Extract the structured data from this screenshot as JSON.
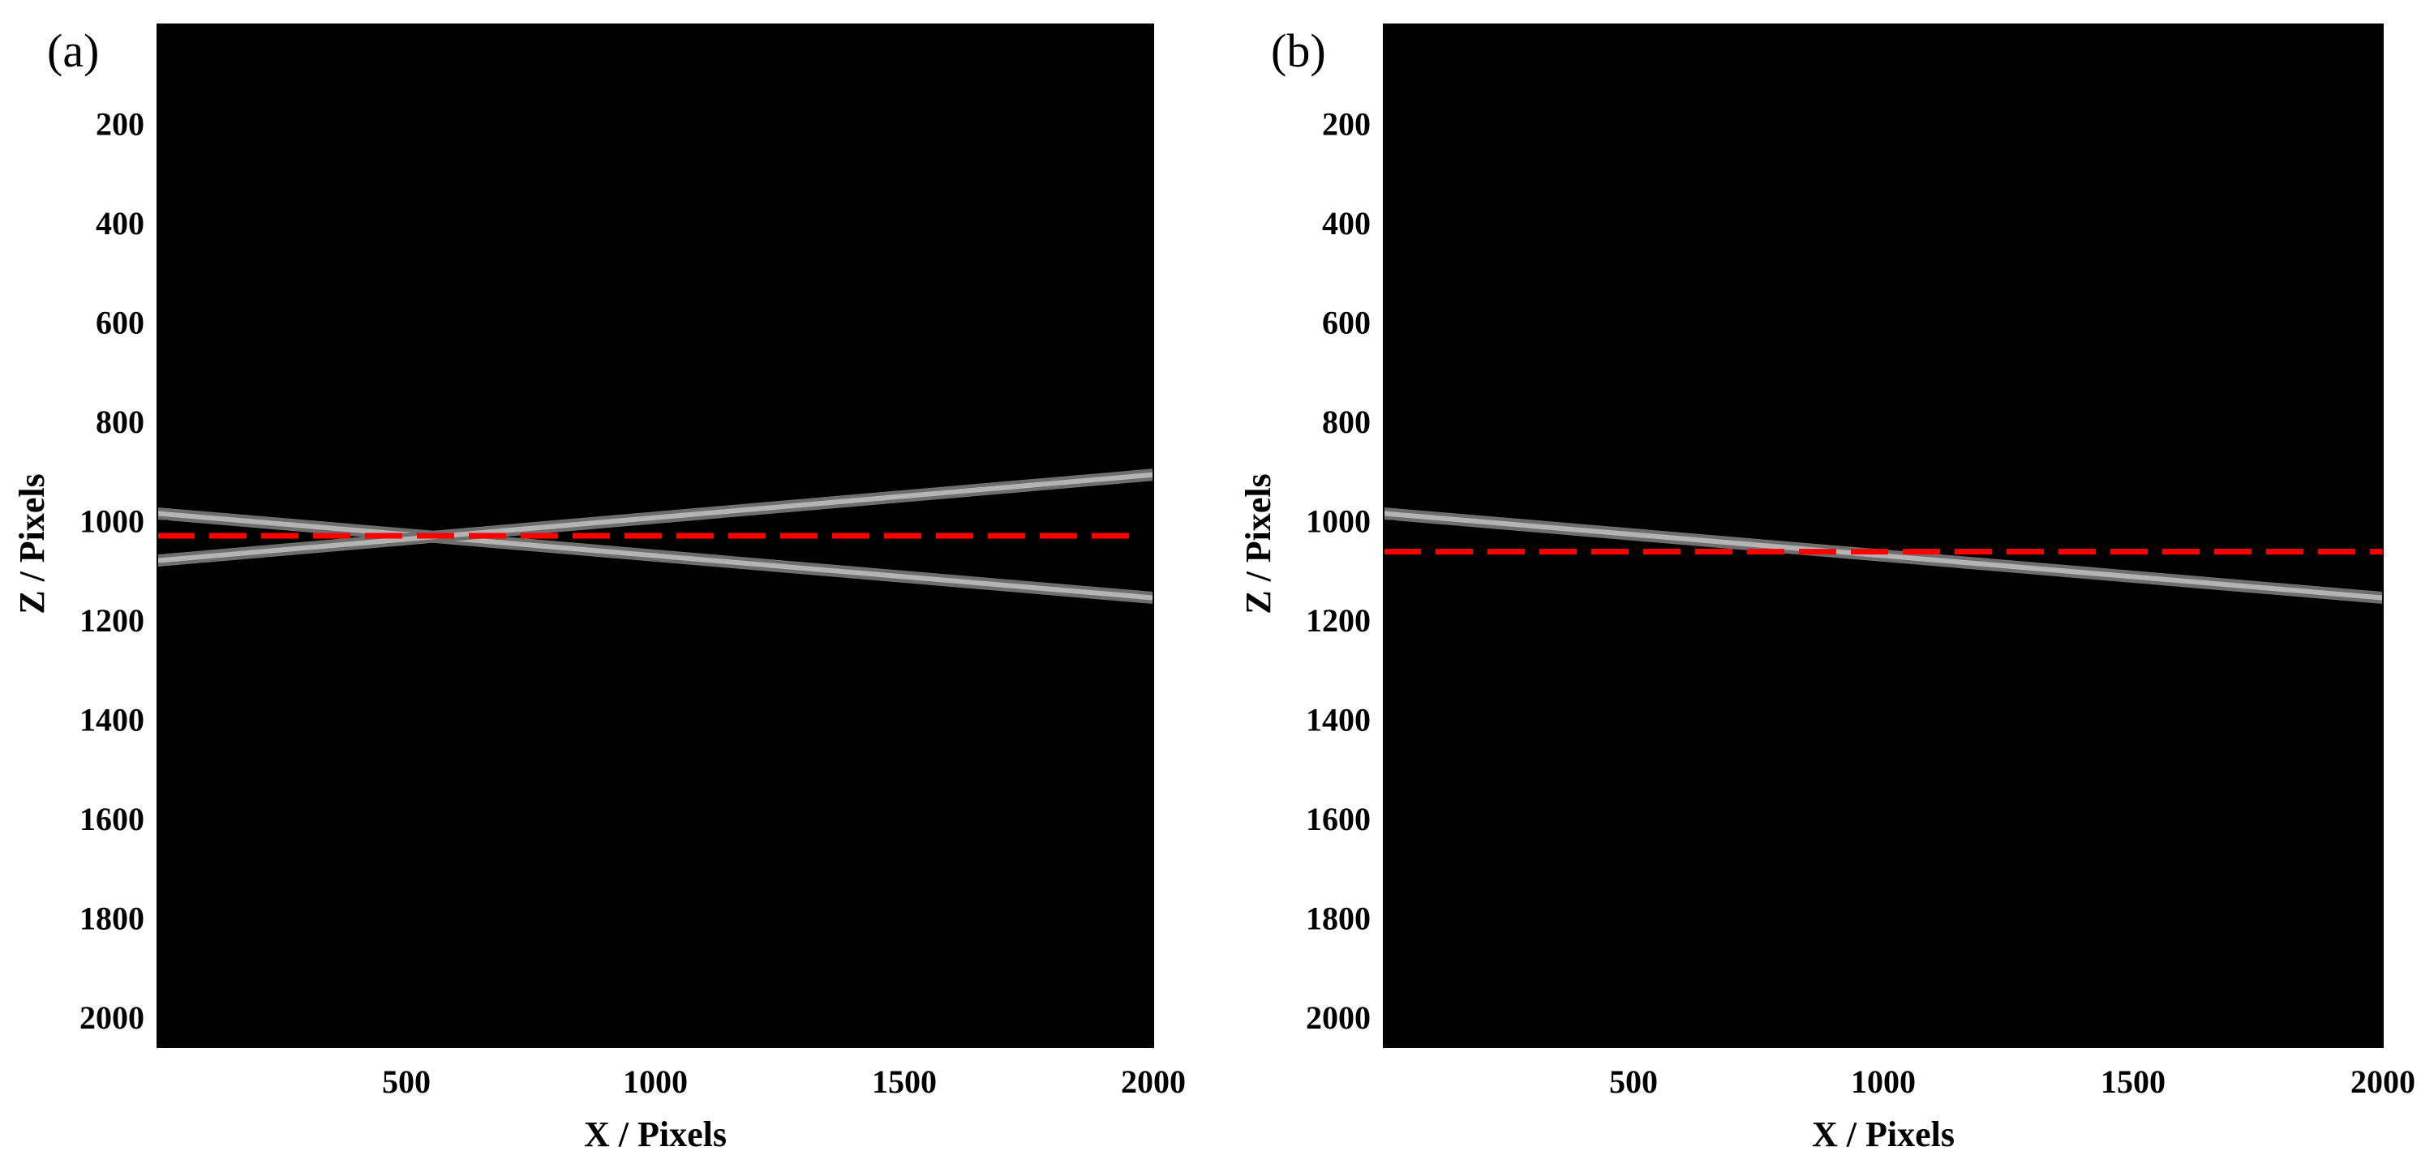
{
  "chart_data": [
    {
      "type": "line",
      "panel_label": "(a)",
      "xlabel": "X / Pixels",
      "ylabel": "Z / Pixels",
      "xlim": [
        0,
        2000
      ],
      "ylim": [
        2060,
        0
      ],
      "y_reversed": true,
      "xticks": [
        500,
        1000,
        1500,
        2000
      ],
      "yticks": [
        200,
        400,
        600,
        800,
        1000,
        1200,
        1400,
        1600,
        1800,
        2000
      ],
      "background": "#000000",
      "grid": false,
      "series": [
        {
          "x": [
            0,
            2000
          ],
          "y": [
            985,
            1155
          ],
          "color": "#b4b4b4",
          "style": "solid"
        },
        {
          "x": [
            0,
            2000
          ],
          "y": [
            1080,
            907
          ],
          "color": "#b4b4b4",
          "style": "solid"
        },
        {
          "x": [
            0,
            1960
          ],
          "y": [
            1030,
            1030
          ],
          "color": "#ff0000",
          "style": "dashed"
        }
      ]
    },
    {
      "type": "line",
      "panel_label": "(b)",
      "xlabel": "X / Pixels",
      "ylabel": "Z / Pixels",
      "xlim": [
        0,
        2000
      ],
      "ylim": [
        2060,
        0
      ],
      "y_reversed": true,
      "xticks": [
        500,
        1000,
        1500,
        2000
      ],
      "yticks": [
        200,
        400,
        600,
        800,
        1000,
        1200,
        1400,
        1600,
        1800,
        2000
      ],
      "background": "#000000",
      "grid": false,
      "series": [
        {
          "x": [
            0,
            2000
          ],
          "y": [
            985,
            1155
          ],
          "color": "#b4b4b4",
          "style": "solid"
        },
        {
          "x": [
            0,
            2000
          ],
          "y": [
            1062,
            1062
          ],
          "color": "#ff0000",
          "style": "dashed"
        }
      ]
    }
  ]
}
